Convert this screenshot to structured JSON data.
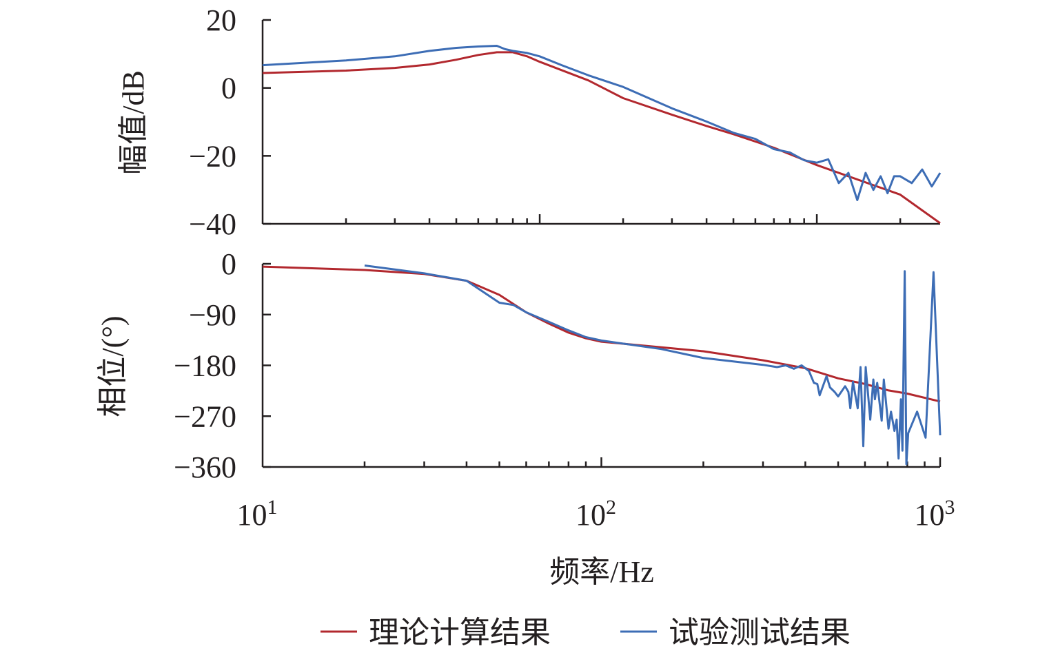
{
  "chart_data": [
    {
      "type": "line",
      "panel": "magnitude",
      "xscale": "log",
      "xlim": [
        10,
        2786
      ],
      "x_major_ticks": [
        10,
        100,
        1000
      ],
      "ylabel": "幅值/dB",
      "ylim": [
        -40,
        20
      ],
      "yticks": [
        20,
        0,
        -20,
        -40
      ],
      "ytick_labels": [
        "20",
        "0",
        "−20",
        "−40"
      ],
      "grid": false,
      "series": [
        {
          "name": "理论计算结果",
          "color": "#b2282e",
          "x": [
            10,
            20,
            30,
            40,
            50,
            60,
            70,
            80,
            90,
            100,
            150,
            200,
            300,
            400,
            500,
            700,
            1000,
            2000,
            2786
          ],
          "y": [
            4.4,
            5.1,
            5.9,
            6.9,
            8.3,
            9.7,
            10.5,
            10.5,
            9.3,
            7.7,
            2.2,
            -3,
            -7.9,
            -11.2,
            -13.6,
            -17.6,
            -22.7,
            -31.4,
            -39.8
          ]
        },
        {
          "name": "试验测试结果",
          "color": "#3d6db5",
          "x": [
            10,
            20,
            30,
            40,
            50,
            60,
            70,
            75,
            80,
            90,
            100,
            120,
            150,
            200,
            300,
            400,
            500,
            600,
            700,
            800,
            900,
            1000,
            1100,
            1200,
            1300,
            1400,
            1500,
            1600,
            1700,
            1800,
            1900,
            2000,
            2200,
            2400,
            2600,
            2786
          ],
          "y": [
            6.7,
            8.1,
            9.3,
            10.9,
            11.8,
            12.2,
            12.4,
            11.4,
            10.9,
            10.3,
            9.3,
            6.7,
            3.7,
            0.3,
            -6,
            -9.9,
            -13.2,
            -15,
            -18,
            -19,
            -21.3,
            -22,
            -21,
            -28,
            -25,
            -33,
            -25,
            -30,
            -26,
            -31,
            -26,
            -26,
            -28,
            -24,
            -29,
            -25
          ]
        }
      ]
    },
    {
      "type": "line",
      "panel": "phase",
      "xscale": "log",
      "xlim": [
        10,
        1000
      ],
      "xticks": [
        10,
        100,
        1000
      ],
      "xtick_labels": [
        {
          "base": "10",
          "exp": "1"
        },
        {
          "base": "10",
          "exp": "2"
        },
        {
          "base": "10",
          "exp": "3"
        }
      ],
      "xlabel": "频率/Hz",
      "ylabel": "相位/(°)",
      "ylim": [
        -360,
        0
      ],
      "yticks": [
        0,
        -90,
        -180,
        -270,
        -360
      ],
      "ytick_labels": [
        "0",
        "−90",
        "−180",
        "−270",
        "−360"
      ],
      "grid": false,
      "series": [
        {
          "name": "理论计算结果",
          "color": "#b2282e",
          "x": [
            10,
            20,
            30,
            40,
            50,
            60,
            70,
            80,
            90,
            100,
            200,
            300,
            400,
            500,
            600,
            700,
            800,
            1000
          ],
          "y": [
            -5,
            -11,
            -18,
            -30,
            -55,
            -86,
            -106,
            -122,
            -132,
            -138,
            -155,
            -171,
            -185,
            -203,
            -213,
            -224,
            -230,
            -244
          ]
        },
        {
          "name": "试验测试结果",
          "color": "#3d6db5",
          "x": [
            20,
            30,
            40,
            50,
            55,
            60,
            70,
            80,
            90,
            100,
            150,
            200,
            300,
            330,
            350,
            370,
            390,
            410,
            424,
            434,
            441,
            462,
            473,
            488,
            500,
            524,
            536,
            543,
            553,
            571,
            582,
            593,
            603,
            622,
            635,
            642,
            652,
            672,
            682,
            704,
            716,
            733,
            744,
            754,
            766,
            774,
            786,
            795,
            805,
            855,
            906,
            956,
            1000
          ],
          "y": [
            -3,
            -17,
            -30,
            -69,
            -73,
            -86,
            -103,
            -118,
            -130,
            -136,
            -151,
            -167,
            -179,
            -183,
            -180,
            -186,
            -180,
            -190,
            -211,
            -213,
            -233,
            -199,
            -219,
            -227,
            -235,
            -217,
            -227,
            -256,
            -209,
            -256,
            -183,
            -323,
            -183,
            -276,
            -205,
            -240,
            -211,
            -278,
            -205,
            -292,
            -262,
            -296,
            -276,
            -345,
            -240,
            -331,
            -13,
            -355,
            -300,
            -262,
            -308,
            -15,
            -304
          ]
        }
      ]
    }
  ],
  "legend": {
    "placement": "bottom",
    "items": [
      {
        "label": "理论计算结果",
        "color": "#b2282e"
      },
      {
        "label": "试验测试结果",
        "color": "#3d6db5"
      }
    ]
  }
}
